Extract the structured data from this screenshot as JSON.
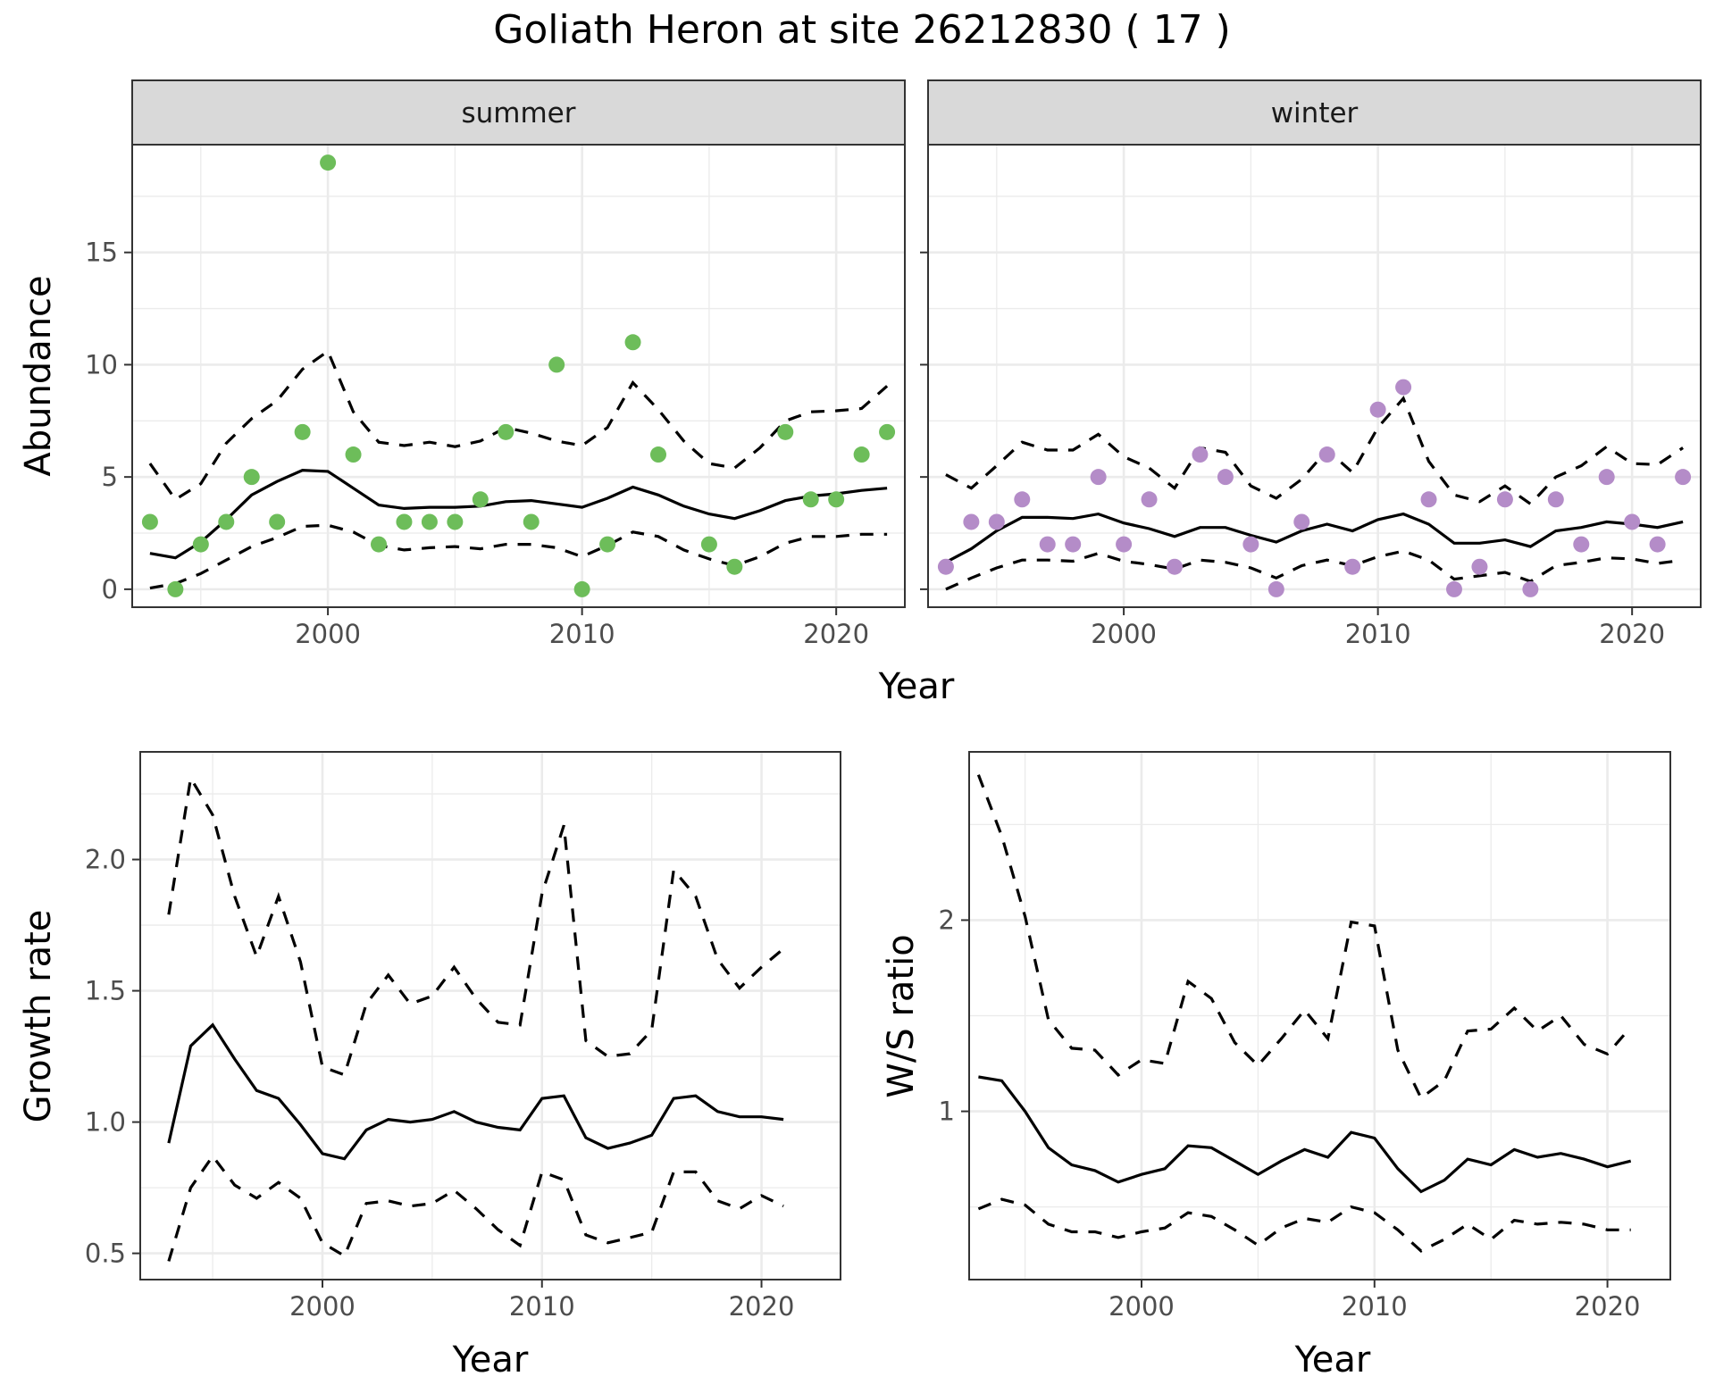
{
  "figure": {
    "title": "Goliath Heron at site 26212830 ( 17 )"
  },
  "chart_data": [
    {
      "id": "summer",
      "type": "scatter",
      "strip": "summer",
      "xlabel": "Year",
      "ylabel": "Abundance",
      "xlim": [
        1992.3,
        2022.7
      ],
      "ylim": [
        -0.8,
        19.8
      ],
      "xticks": [
        2000,
        2010,
        2020
      ],
      "yticks": [
        0,
        5,
        10,
        15
      ],
      "yticks_labeled": true,
      "point_color": "#6dbd5a",
      "x": [
        1993,
        1994,
        1995,
        1996,
        1997,
        1998,
        1999,
        2000,
        2001,
        2002,
        2003,
        2004,
        2005,
        2006,
        2007,
        2008,
        2009,
        2010,
        2011,
        2012,
        2013,
        2014,
        2015,
        2016,
        2017,
        2018,
        2019,
        2020,
        2021,
        2022
      ],
      "points": [
        3,
        0,
        2,
        3,
        5,
        3,
        7,
        19,
        6,
        2,
        3,
        3,
        3,
        4,
        7,
        3,
        10,
        0,
        2,
        11,
        6,
        null,
        2,
        1,
        null,
        7,
        4,
        4,
        6,
        7
      ],
      "mean": [
        1.6,
        1.4,
        2.1,
        3.1,
        4.2,
        4.8,
        5.3,
        5.25,
        4.5,
        3.75,
        3.6,
        3.65,
        3.65,
        3.7,
        3.9,
        3.95,
        3.8,
        3.65,
        4.05,
        4.55,
        4.2,
        3.7,
        3.35,
        3.15,
        3.5,
        3.95,
        4.15,
        4.25,
        4.4,
        4.5
      ],
      "lower": [
        0.05,
        0.25,
        0.7,
        1.3,
        1.9,
        2.3,
        2.8,
        2.85,
        2.55,
        1.95,
        1.75,
        1.85,
        1.9,
        1.8,
        2.0,
        2.0,
        1.85,
        1.45,
        1.95,
        2.55,
        2.35,
        1.75,
        1.35,
        1.05,
        1.45,
        2.05,
        2.35,
        2.35,
        2.45,
        2.45
      ],
      "upper": [
        5.6,
        4.0,
        4.7,
        6.5,
        7.6,
        8.4,
        9.8,
        10.6,
        7.9,
        6.55,
        6.4,
        6.55,
        6.35,
        6.6,
        7.2,
        6.95,
        6.6,
        6.4,
        7.2,
        9.2,
        8.0,
        6.6,
        5.6,
        5.4,
        6.3,
        7.5,
        7.9,
        7.95,
        8.05,
        9.05
      ]
    },
    {
      "id": "winter",
      "type": "scatter",
      "strip": "winter",
      "xlabel": "Year",
      "ylabel": "",
      "xlim": [
        1992.3,
        2022.7
      ],
      "ylim": [
        -0.8,
        19.8
      ],
      "xticks": [
        2000,
        2010,
        2020
      ],
      "yticks": [
        0,
        5,
        10,
        15
      ],
      "yticks_labeled": false,
      "point_color": "#b48cc8",
      "x": [
        1993,
        1994,
        1995,
        1996,
        1997,
        1998,
        1999,
        2000,
        2001,
        2002,
        2003,
        2004,
        2005,
        2006,
        2007,
        2008,
        2009,
        2010,
        2011,
        2012,
        2013,
        2014,
        2015,
        2016,
        2017,
        2018,
        2019,
        2020,
        2021,
        2022
      ],
      "points": [
        1,
        3,
        3,
        4,
        2,
        2,
        5,
        2,
        4,
        1,
        6,
        5,
        2,
        0,
        3,
        6,
        1,
        8,
        9,
        4,
        0,
        1,
        4,
        0,
        4,
        2,
        5,
        3,
        2,
        5
      ],
      "mean": [
        1.2,
        1.8,
        2.6,
        3.2,
        3.2,
        3.15,
        3.35,
        2.95,
        2.7,
        2.35,
        2.75,
        2.75,
        2.4,
        2.1,
        2.6,
        2.9,
        2.6,
        3.1,
        3.35,
        2.9,
        2.05,
        2.05,
        2.2,
        1.9,
        2.6,
        2.75,
        3.0,
        2.9,
        2.75,
        3.0
      ],
      "lower": [
        0.0,
        0.5,
        0.95,
        1.3,
        1.3,
        1.25,
        1.6,
        1.25,
        1.1,
        0.9,
        1.3,
        1.2,
        0.95,
        0.5,
        1.05,
        1.3,
        1.05,
        1.45,
        1.7,
        1.3,
        0.45,
        0.6,
        0.75,
        0.35,
        1.05,
        1.2,
        1.4,
        1.35,
        1.15,
        1.3
      ],
      "upper": [
        5.1,
        4.5,
        5.5,
        6.55,
        6.2,
        6.2,
        6.9,
        5.9,
        5.4,
        4.5,
        6.3,
        6.1,
        4.6,
        4.05,
        4.9,
        6.2,
        5.2,
        7.2,
        8.5,
        5.7,
        4.2,
        3.9,
        4.6,
        3.8,
        5.0,
        5.5,
        6.35,
        5.6,
        5.55,
        6.3
      ]
    },
    {
      "id": "growth",
      "type": "line",
      "xlabel": "Year",
      "ylabel": "Growth rate",
      "xlim": [
        1991.7,
        2023.6
      ],
      "ylim": [
        0.4,
        2.41
      ],
      "xticks": [
        2000,
        2010,
        2020
      ],
      "yticks": [
        0.5,
        1.0,
        1.5,
        2.0
      ],
      "yticks_labeled": true,
      "x": [
        1993,
        1994,
        1995,
        1996,
        1997,
        1998,
        1999,
        2000,
        2001,
        2002,
        2003,
        2004,
        2005,
        2006,
        2007,
        2008,
        2009,
        2010,
        2011,
        2012,
        2013,
        2014,
        2015,
        2016,
        2017,
        2018,
        2019,
        2020,
        2021
      ],
      "mean": [
        0.92,
        1.29,
        1.37,
        1.24,
        1.12,
        1.09,
        0.99,
        0.88,
        0.86,
        0.97,
        1.01,
        1.0,
        1.01,
        1.04,
        1.0,
        0.98,
        0.97,
        1.09,
        1.1,
        0.94,
        0.9,
        0.92,
        0.95,
        1.09,
        1.1,
        1.04,
        1.02,
        1.02,
        1.01
      ],
      "lower": [
        0.47,
        0.75,
        0.87,
        0.76,
        0.71,
        0.77,
        0.71,
        0.54,
        0.49,
        0.69,
        0.7,
        0.68,
        0.69,
        0.74,
        0.67,
        0.59,
        0.53,
        0.81,
        0.78,
        0.57,
        0.54,
        0.56,
        0.58,
        0.81,
        0.81,
        0.7,
        0.67,
        0.72,
        0.68
      ],
      "upper": [
        1.79,
        2.31,
        2.17,
        1.86,
        1.63,
        1.86,
        1.61,
        1.21,
        1.18,
        1.45,
        1.56,
        1.45,
        1.48,
        1.59,
        1.47,
        1.38,
        1.37,
        1.87,
        2.13,
        1.31,
        1.25,
        1.26,
        1.35,
        1.96,
        1.86,
        1.62,
        1.51,
        1.59,
        1.66
      ]
    },
    {
      "id": "ratio",
      "type": "line",
      "xlabel": "Year",
      "ylabel": "W/S ratio",
      "xlim": [
        1992.6,
        2022.7
      ],
      "ylim": [
        0.12,
        2.88
      ],
      "xticks": [
        2000,
        2010,
        2020
      ],
      "yticks": [
        1,
        2
      ],
      "yticks_labeled": true,
      "x": [
        1993,
        1994,
        1995,
        1996,
        1997,
        1998,
        1999,
        2000,
        2001,
        2002,
        2003,
        2004,
        2005,
        2006,
        2007,
        2008,
        2009,
        2010,
        2011,
        2012,
        2013,
        2014,
        2015,
        2016,
        2017,
        2018,
        2019,
        2020,
        2021
      ],
      "mean": [
        1.18,
        1.16,
        1.0,
        0.81,
        0.72,
        0.69,
        0.63,
        0.67,
        0.7,
        0.82,
        0.81,
        0.74,
        0.67,
        0.74,
        0.8,
        0.76,
        0.89,
        0.86,
        0.7,
        0.58,
        0.64,
        0.75,
        0.72,
        0.8,
        0.76,
        0.78,
        0.75,
        0.71,
        0.74
      ],
      "lower": [
        0.49,
        0.54,
        0.51,
        0.41,
        0.37,
        0.37,
        0.34,
        0.37,
        0.39,
        0.47,
        0.45,
        0.38,
        0.3,
        0.39,
        0.44,
        0.42,
        0.5,
        0.47,
        0.38,
        0.27,
        0.33,
        0.41,
        0.33,
        0.43,
        0.41,
        0.42,
        0.41,
        0.38,
        0.38
      ],
      "upper": [
        2.76,
        2.44,
        2.02,
        1.48,
        1.33,
        1.32,
        1.19,
        1.27,
        1.25,
        1.68,
        1.59,
        1.36,
        1.24,
        1.38,
        1.53,
        1.38,
        1.99,
        1.97,
        1.32,
        1.07,
        1.16,
        1.42,
        1.43,
        1.54,
        1.42,
        1.5,
        1.35,
        1.3,
        1.44
      ]
    }
  ]
}
